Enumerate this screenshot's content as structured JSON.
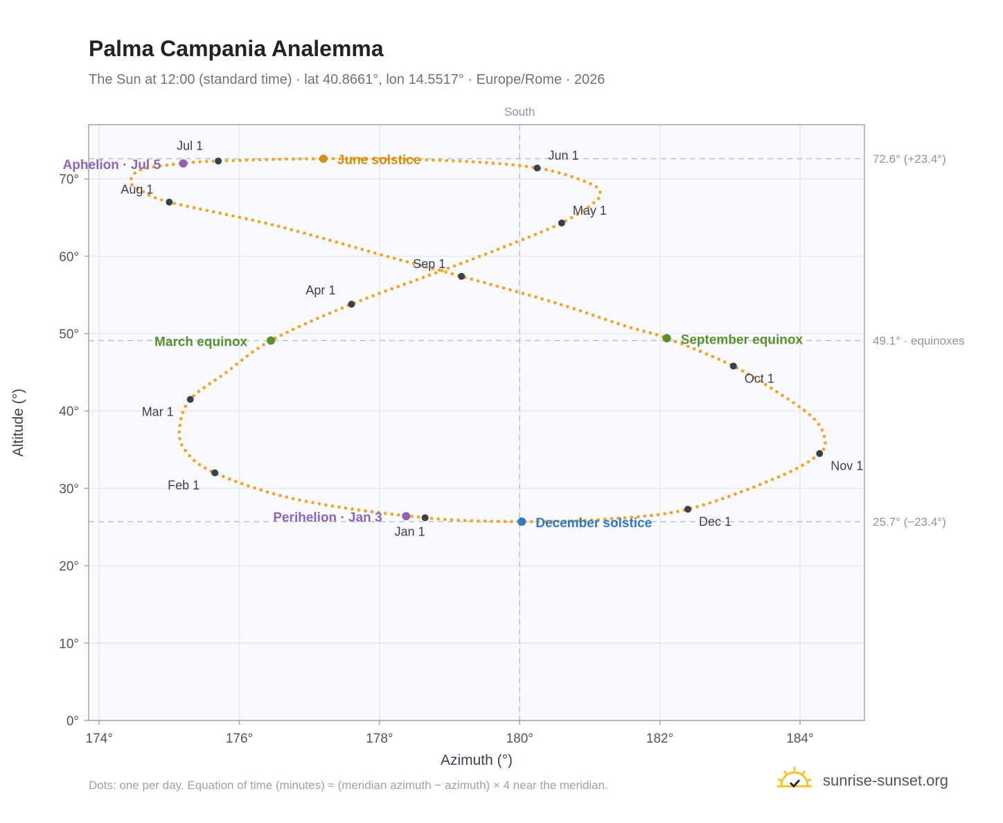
{
  "title": "Palma Campania Analemma",
  "subtitle": "The Sun at 12:00 (standard time) · lat 40.8661°, lon 14.5517° · Europe/Rome · 2026",
  "footnote": "Dots: one per day. Equation of time (minutes) ≈ (meridian azimuth − azimuth) × 4 near the meridian.",
  "brand": {
    "name": "sunrise-sunset.org",
    "logo_icon": "sun-logo-icon"
  },
  "colors": {
    "curve": "#f2a52b",
    "month_marker": "#374151",
    "equinox": "#5a8f2e",
    "june_solstice": "#d4900f",
    "december_solstice": "#2f78c2",
    "apsis": "#8e63b8",
    "plot_bg": "#f8fafd",
    "grid": "#e5e9ef",
    "guide": "#b8c2cf"
  },
  "chart_data": {
    "type": "scatter",
    "xlabel": "Azimuth (°)",
    "ylabel": "Altitude (°)",
    "xlim": [
      173.85,
      184.92
    ],
    "ylim": [
      0,
      77
    ],
    "xticks": [
      174,
      176,
      178,
      180,
      182,
      184
    ],
    "yticks": [
      0,
      10,
      20,
      30,
      40,
      50,
      60,
      70
    ],
    "grid": true,
    "meridian": {
      "x": 180,
      "label": "South"
    },
    "reference_lines": [
      {
        "y": 72.6,
        "label": "72.6° (+23.4°)"
      },
      {
        "y": 49.1,
        "label": "49.1° · equinoxes"
      },
      {
        "y": 25.7,
        "label": "25.7° (−23.4°)"
      }
    ],
    "month_markers": [
      {
        "label": "Jan 1",
        "x": 178.65,
        "y": 26.2
      },
      {
        "label": "Feb 1",
        "x": 175.65,
        "y": 32.0
      },
      {
        "label": "Mar 1",
        "x": 175.3,
        "y": 41.5
      },
      {
        "label": "Apr 1",
        "x": 177.6,
        "y": 53.8
      },
      {
        "label": "May 1",
        "x": 180.6,
        "y": 64.3
      },
      {
        "label": "Jun 1",
        "x": 180.25,
        "y": 71.4
      },
      {
        "label": "Jul 1",
        "x": 175.7,
        "y": 72.3
      },
      {
        "label": "Aug 1",
        "x": 175.0,
        "y": 67.0
      },
      {
        "label": "Sep 1",
        "x": 179.17,
        "y": 57.4
      },
      {
        "label": "Oct 1",
        "x": 183.05,
        "y": 45.8
      },
      {
        "label": "Nov 1",
        "x": 184.28,
        "y": 34.5
      },
      {
        "label": "Dec 1",
        "x": 182.4,
        "y": 27.3
      }
    ],
    "events": [
      {
        "label": "March equinox",
        "x": 176.45,
        "y": 49.1,
        "kind": "equinox"
      },
      {
        "label": "September equinox",
        "x": 182.1,
        "y": 49.4,
        "kind": "equinox"
      },
      {
        "label": "June solstice",
        "x": 177.2,
        "y": 72.6,
        "kind": "june_solstice"
      },
      {
        "label": "December solstice",
        "x": 180.03,
        "y": 25.7,
        "kind": "december_solstice"
      },
      {
        "label": "Aphelion · Jul 5",
        "x": 175.2,
        "y": 72.0,
        "kind": "apsis"
      },
      {
        "label": "Perihelion · Jan 3",
        "x": 178.38,
        "y": 26.4,
        "kind": "apsis"
      }
    ],
    "series": [
      {
        "values": [
          [
            178.65,
            26.2
          ],
          [
            176.85,
            28.5
          ],
          [
            175.65,
            32.0
          ],
          [
            175.22,
            35.0
          ],
          [
            175.15,
            38.0
          ],
          [
            175.3,
            41.5
          ],
          [
            175.8,
            44.9
          ],
          [
            176.45,
            49.1
          ],
          [
            177.6,
            53.8
          ],
          [
            179.0,
            58.5
          ],
          [
            180.0,
            62.0
          ],
          [
            180.6,
            64.3
          ],
          [
            181.0,
            66.5
          ],
          [
            181.15,
            68.0
          ],
          [
            181.0,
            69.4
          ],
          [
            180.25,
            71.4
          ],
          [
            179.0,
            72.35
          ],
          [
            177.2,
            72.6
          ],
          [
            175.7,
            72.3
          ],
          [
            175.2,
            72.0
          ],
          [
            174.6,
            71.2
          ],
          [
            174.45,
            69.6
          ],
          [
            174.6,
            68.5
          ],
          [
            175.0,
            67.0
          ],
          [
            176.5,
            64.0
          ],
          [
            178.1,
            60.0
          ],
          [
            179.17,
            57.4
          ],
          [
            180.5,
            54.0
          ],
          [
            181.5,
            51.0
          ],
          [
            182.1,
            49.4
          ],
          [
            183.05,
            45.8
          ],
          [
            183.75,
            42.0
          ],
          [
            184.2,
            39.0
          ],
          [
            184.35,
            36.5
          ],
          [
            184.28,
            34.5
          ],
          [
            183.7,
            31.5
          ],
          [
            182.4,
            27.3
          ],
          [
            181.2,
            26.0
          ],
          [
            180.03,
            25.7
          ],
          [
            178.65,
            26.2
          ]
        ]
      }
    ]
  }
}
